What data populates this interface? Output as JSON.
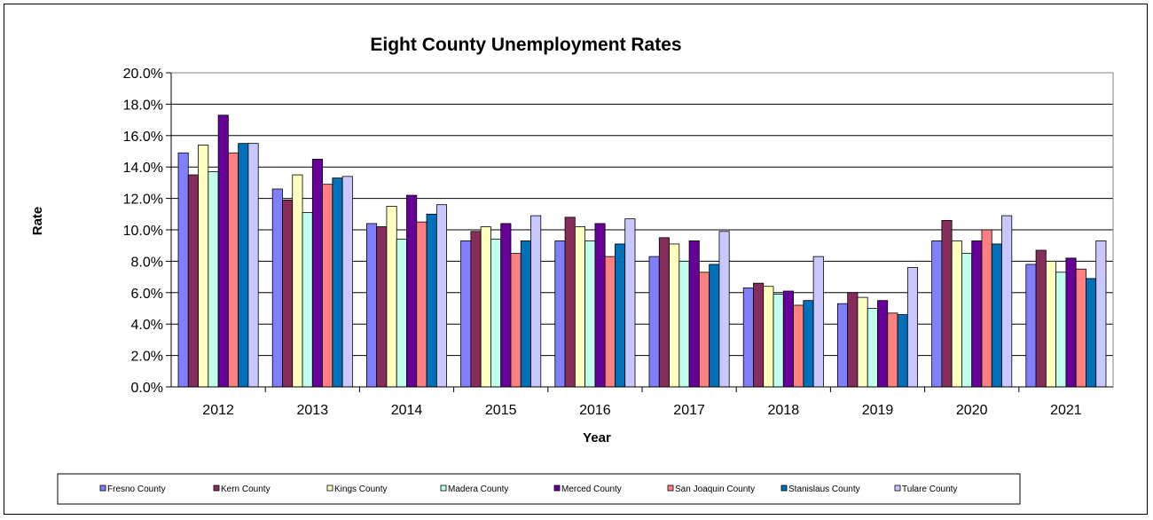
{
  "chart_data": {
    "type": "bar",
    "title": "Eight County Unemployment Rates",
    "xlabel": "Year",
    "ylabel": "Rate",
    "ylim": [
      0,
      20
    ],
    "yticks": [
      "0.0%",
      "2.0%",
      "4.0%",
      "6.0%",
      "8.0%",
      "10.0%",
      "12.0%",
      "14.0%",
      "16.0%",
      "18.0%",
      "20.0%"
    ],
    "grid": true,
    "legend_position": "bottom",
    "categories": [
      "2012",
      "2013",
      "2014",
      "2015",
      "2016",
      "2017",
      "2018",
      "2019",
      "2020",
      "2021"
    ],
    "series": [
      {
        "name": "Fresno County",
        "color": "#8080ff",
        "values": [
          14.9,
          12.6,
          10.4,
          9.3,
          9.3,
          8.3,
          6.3,
          5.3,
          9.3,
          7.8
        ]
      },
      {
        "name": "Kern County",
        "color": "#862d5c",
        "values": [
          13.5,
          11.9,
          10.2,
          9.9,
          10.8,
          9.5,
          6.6,
          6.0,
          10.6,
          8.7
        ]
      },
      {
        "name": "Kings County",
        "color": "#ffffc0",
        "values": [
          15.4,
          13.5,
          11.5,
          10.2,
          10.2,
          9.1,
          6.4,
          5.7,
          9.3,
          8.0
        ]
      },
      {
        "name": "Madera County",
        "color": "#c0ffee",
        "values": [
          13.7,
          11.1,
          9.4,
          9.4,
          9.3,
          8.0,
          5.9,
          5.0,
          8.5,
          7.3
        ]
      },
      {
        "name": "Merced County",
        "color": "#660099",
        "values": [
          17.3,
          14.5,
          12.2,
          10.4,
          10.4,
          9.3,
          6.1,
          5.5,
          9.3,
          8.2
        ]
      },
      {
        "name": "San Joaquin County",
        "color": "#ff8080",
        "values": [
          14.9,
          12.9,
          10.5,
          8.5,
          8.3,
          7.3,
          5.2,
          4.7,
          10.0,
          7.5
        ]
      },
      {
        "name": "Stanislaus County",
        "color": "#0070b8",
        "values": [
          15.5,
          13.3,
          11.0,
          9.3,
          9.1,
          7.8,
          5.5,
          4.6,
          9.1,
          6.9
        ]
      },
      {
        "name": "Tulare County",
        "color": "#c8c8ff",
        "values": [
          15.5,
          13.4,
          11.6,
          10.9,
          10.7,
          9.9,
          8.3,
          7.6,
          10.9,
          9.3
        ]
      }
    ]
  }
}
